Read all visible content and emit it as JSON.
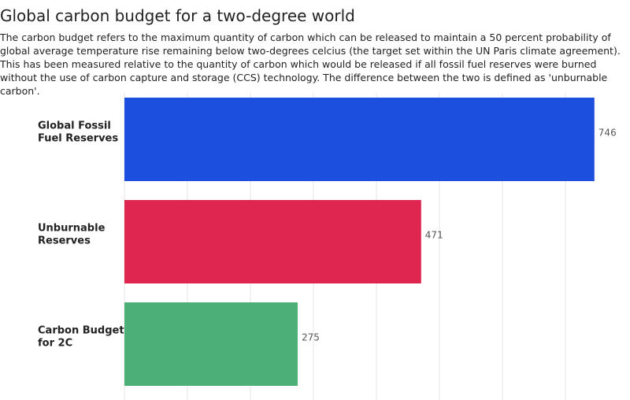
{
  "chart_data": {
    "type": "hbar",
    "title": "Global carbon budget for a two-degree world",
    "subtitle": "The carbon budget refers to the maximum quantity of carbon which can be released to maintain a 50 percent probability of global average temperature rise remaining below two-degrees celcius (the target set within the UN Paris climate agreement). This has been measured relative to the quantity of carbon which would be released if all fossil fuel reserves were burned without the use of carbon capture and storage (CCS) technology. The difference between the two is defined as 'unburnable carbon'.",
    "categories": [
      [
        "Global Fossil",
        "Fuel Reserves"
      ],
      [
        "Unburnable",
        "Reserves"
      ],
      [
        "Carbon Budget",
        "for 2C"
      ]
    ],
    "values": [
      746,
      471,
      275
    ],
    "colors": [
      "#1d4fdf",
      "#df2650",
      "#4caf78"
    ],
    "xlim": [
      0,
      750
    ],
    "xticks": [
      0,
      100,
      200,
      300,
      400,
      500,
      600,
      700
    ],
    "grid": true
  }
}
